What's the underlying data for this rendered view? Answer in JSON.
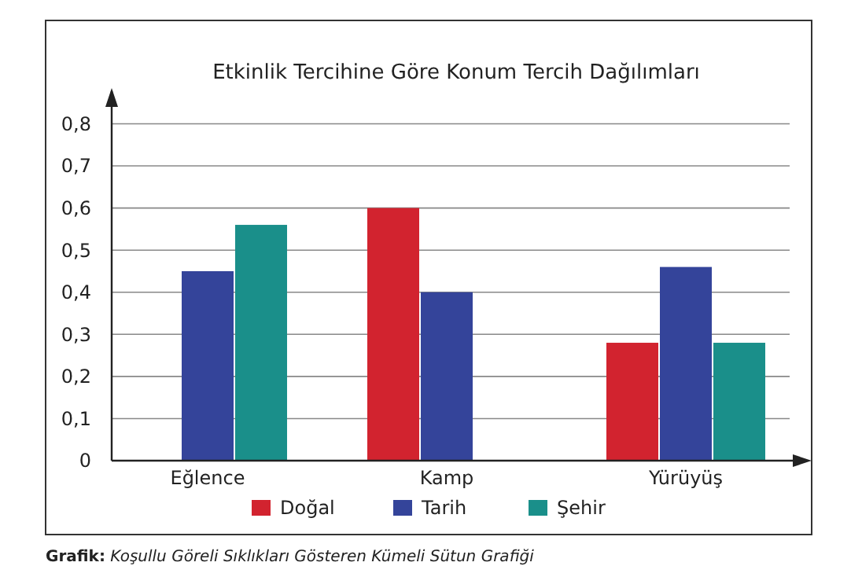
{
  "chart_data": {
    "type": "bar",
    "title": "Etkinlik Tercihine Göre Konum Tercih Dağılımları",
    "categories": [
      "Eğlence",
      "Kamp",
      "Yürüyüş"
    ],
    "series": [
      {
        "name": "Doğal",
        "color": "#d2232f",
        "values": [
          0,
          0.6,
          0.28
        ]
      },
      {
        "name": "Tarih",
        "color": "#34449a",
        "values": [
          0.45,
          0.4,
          0.46
        ]
      },
      {
        "name": "Şehir",
        "color": "#1a8f8a",
        "values": [
          0.56,
          0,
          0.28
        ]
      }
    ],
    "ylim": [
      0,
      0.87
    ],
    "yticks": [
      {
        "value": 0,
        "label": "0"
      },
      {
        "value": 0.1,
        "label": "0,1"
      },
      {
        "value": 0.2,
        "label": "0,2"
      },
      {
        "value": 0.3,
        "label": "0,3"
      },
      {
        "value": 0.4,
        "label": "0,4"
      },
      {
        "value": 0.5,
        "label": "0,5"
      },
      {
        "value": 0.6,
        "label": "0,6"
      },
      {
        "value": 0.7,
        "label": "0,7"
      },
      {
        "value": 0.8,
        "label": "0,8"
      }
    ],
    "grid": "y",
    "legend": "bottom",
    "annotations": [
      "Grafik: Koşullu Göreli Sıklıkları Gösteren Kümeli Sütun Grafiği"
    ]
  }
}
